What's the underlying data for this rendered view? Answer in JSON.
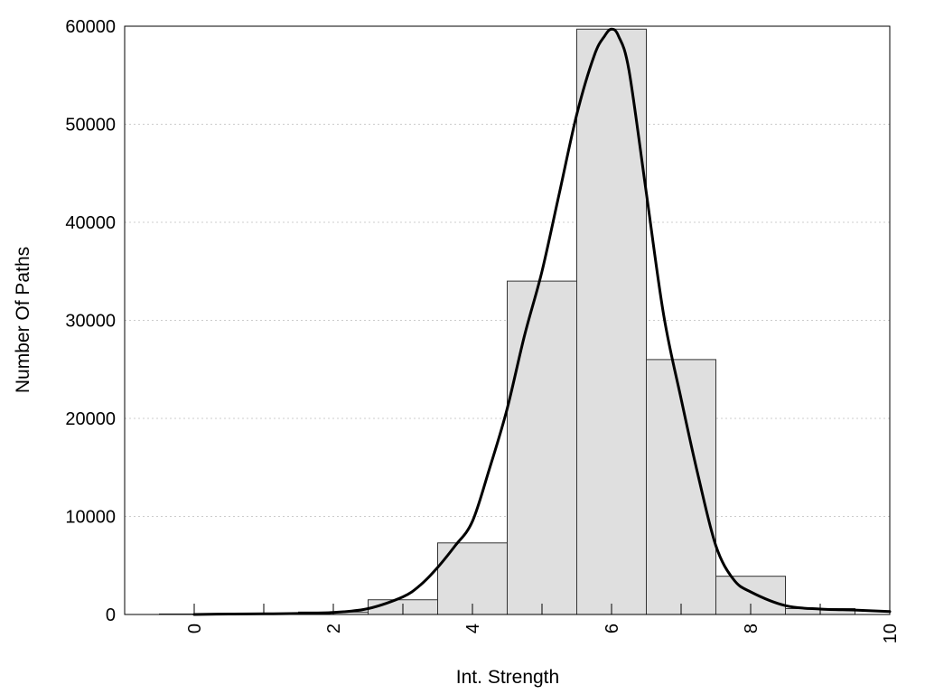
{
  "chart_data": {
    "type": "bar",
    "title": "",
    "xlabel": "Int. Strength",
    "ylabel": "Number Of Paths",
    "xlim": [
      -1,
      10
    ],
    "ylim": [
      0,
      60000
    ],
    "x_ticks": [
      0,
      2,
      4,
      6,
      8,
      10
    ],
    "y_ticks": [
      0,
      10000,
      20000,
      30000,
      40000,
      50000,
      60000
    ],
    "grid": "horizontal dotted",
    "legend": "none",
    "colors": {
      "bar_fill": "#dfdfdf",
      "bar_edge": "#333333",
      "curve": "#000000",
      "grid": "#cccccc"
    },
    "bars": {
      "bin_width": 1,
      "x": [
        0,
        1,
        2,
        3,
        4,
        5,
        6,
        7,
        8,
        9
      ],
      "values": [
        50,
        80,
        250,
        1500,
        7300,
        34000,
        59700,
        26000,
        3900,
        600
      ]
    },
    "density_curve": {
      "x": [
        0,
        0.5,
        1,
        1.5,
        2,
        2.5,
        3,
        3.25,
        3.5,
        3.75,
        4,
        4.25,
        4.5,
        4.75,
        5,
        5.25,
        5.5,
        5.75,
        5.9,
        6,
        6.1,
        6.25,
        6.5,
        6.75,
        7,
        7.25,
        7.5,
        7.75,
        8,
        8.5,
        9,
        9.5,
        10
      ],
      "y": [
        0,
        50,
        60,
        100,
        200,
        600,
        1800,
        3000,
        4800,
        7000,
        9500,
        15000,
        21000,
        28500,
        35000,
        43000,
        51000,
        57000,
        59000,
        59700,
        59000,
        55500,
        43000,
        30500,
        22000,
        14000,
        7000,
        3600,
        2300,
        900,
        550,
        450,
        300
      ]
    }
  }
}
